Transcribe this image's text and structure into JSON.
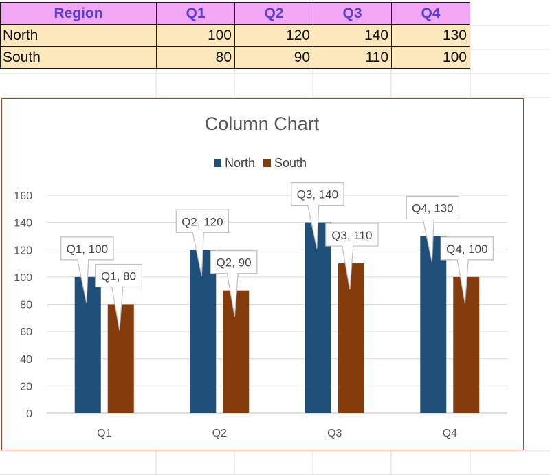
{
  "table": {
    "headers": [
      "Region",
      "Q1",
      "Q2",
      "Q3",
      "Q4"
    ],
    "rows": [
      {
        "label": "North",
        "values": [
          "100",
          "120",
          "140",
          "130"
        ]
      },
      {
        "label": "South",
        "values": [
          "80",
          "90",
          "110",
          "100"
        ]
      }
    ]
  },
  "colors": {
    "header_bg": "#f2a7f4",
    "header_text": "#5a3fd0",
    "cell_bg": "#fde8be",
    "north": "#1f4e79",
    "south": "#843c0c"
  },
  "chart_data": {
    "type": "bar",
    "title": "Column Chart",
    "categories": [
      "Q1",
      "Q2",
      "Q3",
      "Q4"
    ],
    "series": [
      {
        "name": "North",
        "values": [
          100,
          120,
          140,
          130
        ]
      },
      {
        "name": "South",
        "values": [
          80,
          90,
          110,
          100
        ]
      }
    ],
    "ylim": [
      0,
      160
    ],
    "yticks": [
      0,
      20,
      40,
      60,
      80,
      100,
      120,
      140,
      160
    ],
    "grid": true,
    "legend": "top",
    "data_labels": [
      [
        "Q1, 100",
        "Q2, 120",
        "Q3, 140",
        "Q4, 130"
      ],
      [
        "Q1, 80",
        "Q2, 90",
        "Q3, 110",
        "Q4, 100"
      ]
    ]
  }
}
